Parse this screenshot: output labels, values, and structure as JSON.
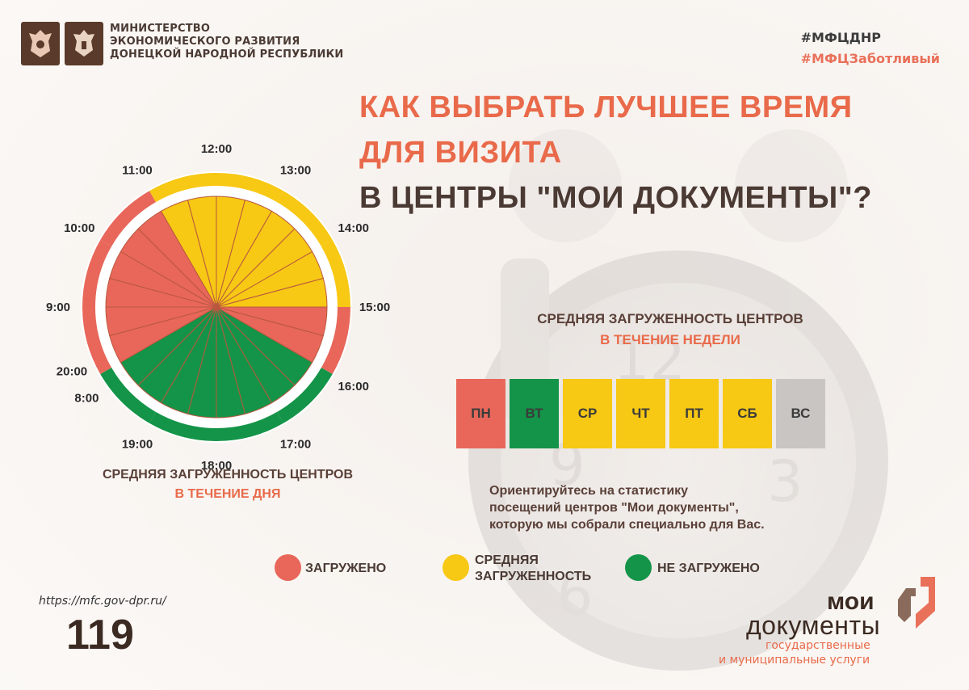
{
  "header": {
    "ministry_lines": [
      "МИНИСТЕРСТВО",
      "ЭКОНОМИЧЕСКОГО РАЗВИТИЯ",
      "ДОНЕЦКОЙ НАРОДНОЙ РЕСПУБЛИКИ"
    ],
    "hashtag1": "#МФЦДНР",
    "hashtag2": "#МФЦЗаботливый"
  },
  "title": {
    "line1": "КАК ВЫБРАТЬ ЛУЧШЕЕ ВРЕМЯ",
    "line2": "ДЛЯ ВИЗИТА",
    "line3": "В ЦЕНТРЫ \"МОИ ДОКУМЕНТЫ\"?"
  },
  "colors": {
    "busy": "#e8675a",
    "medium": "#f7c814",
    "free": "#149448",
    "closed": "#c9c5c2",
    "accent": "#e96a4a",
    "dark": "#4a3a33"
  },
  "day_chart": {
    "caption_line1": "СРЕДНЯЯ ЗАГРУЖЕННОСТЬ ЦЕНТРОВ",
    "caption_line2": "В ТЕЧЕНИЕ ДНЯ",
    "hour_labels": [
      "8:00",
      "9:00",
      "10:00",
      "11:00",
      "12:00",
      "13:00",
      "14:00",
      "15:00",
      "16:00",
      "17:00",
      "18:00",
      "19:00",
      "20:00"
    ],
    "slots": [
      {
        "from": "9:00",
        "to": "10:00",
        "level": "busy"
      },
      {
        "from": "10:00",
        "to": "11:00",
        "level": "busy"
      },
      {
        "from": "11:00",
        "to": "12:00",
        "level": "medium"
      },
      {
        "from": "12:00",
        "to": "13:00",
        "level": "medium"
      },
      {
        "from": "13:00",
        "to": "14:00",
        "level": "medium"
      },
      {
        "from": "14:00",
        "to": "15:00",
        "level": "medium"
      },
      {
        "from": "15:00",
        "to": "16:00",
        "level": "busy"
      },
      {
        "from": "16:00",
        "to": "17:00",
        "level": "free"
      },
      {
        "from": "17:00",
        "to": "18:00",
        "level": "free"
      },
      {
        "from": "18:00",
        "to": "19:00",
        "level": "free"
      },
      {
        "from": "19:00",
        "to": "20:00",
        "level": "free"
      },
      {
        "from": "8:00",
        "to": "9:00",
        "level": "busy"
      }
    ]
  },
  "week_chart": {
    "caption_line1": "СРЕДНЯЯ ЗАГРУЖЕННОСТЬ ЦЕНТРОВ",
    "caption_line2": "В ТЕЧЕНИЕ НЕДЕЛИ",
    "days": [
      {
        "label": "ПН",
        "level": "busy"
      },
      {
        "label": "ВТ",
        "level": "free"
      },
      {
        "label": "СР",
        "level": "medium"
      },
      {
        "label": "ЧТ",
        "level": "medium"
      },
      {
        "label": "ПТ",
        "level": "medium"
      },
      {
        "label": "СБ",
        "level": "medium"
      },
      {
        "label": "ВС",
        "level": "closed"
      }
    ]
  },
  "note": {
    "line1": "Ориентируйтесь на статистику",
    "line2": "посещений центров \"Мои документы\",",
    "line3": "которую мы собрали специально для Вас."
  },
  "legend": {
    "busy": "ЗАГРУЖЕНО",
    "medium_line1": "СРЕДНЯЯ",
    "medium_line2": "ЗАГРУЖЕННОСТЬ",
    "free": "НЕ ЗАГРУЖЕНО"
  },
  "footer": {
    "url": "https://mfc.gov-dpr.ru/",
    "page_number": "119"
  },
  "logo": {
    "word1": "мои",
    "word2": "документы",
    "sub1": "государственные",
    "sub2": "и муниципальные услуги",
    "icon": "mfc-logo-icon"
  },
  "icons": {
    "emblem1": "russia-coat-of-arms-icon",
    "emblem2": "dpr-coat-of-arms-icon"
  }
}
